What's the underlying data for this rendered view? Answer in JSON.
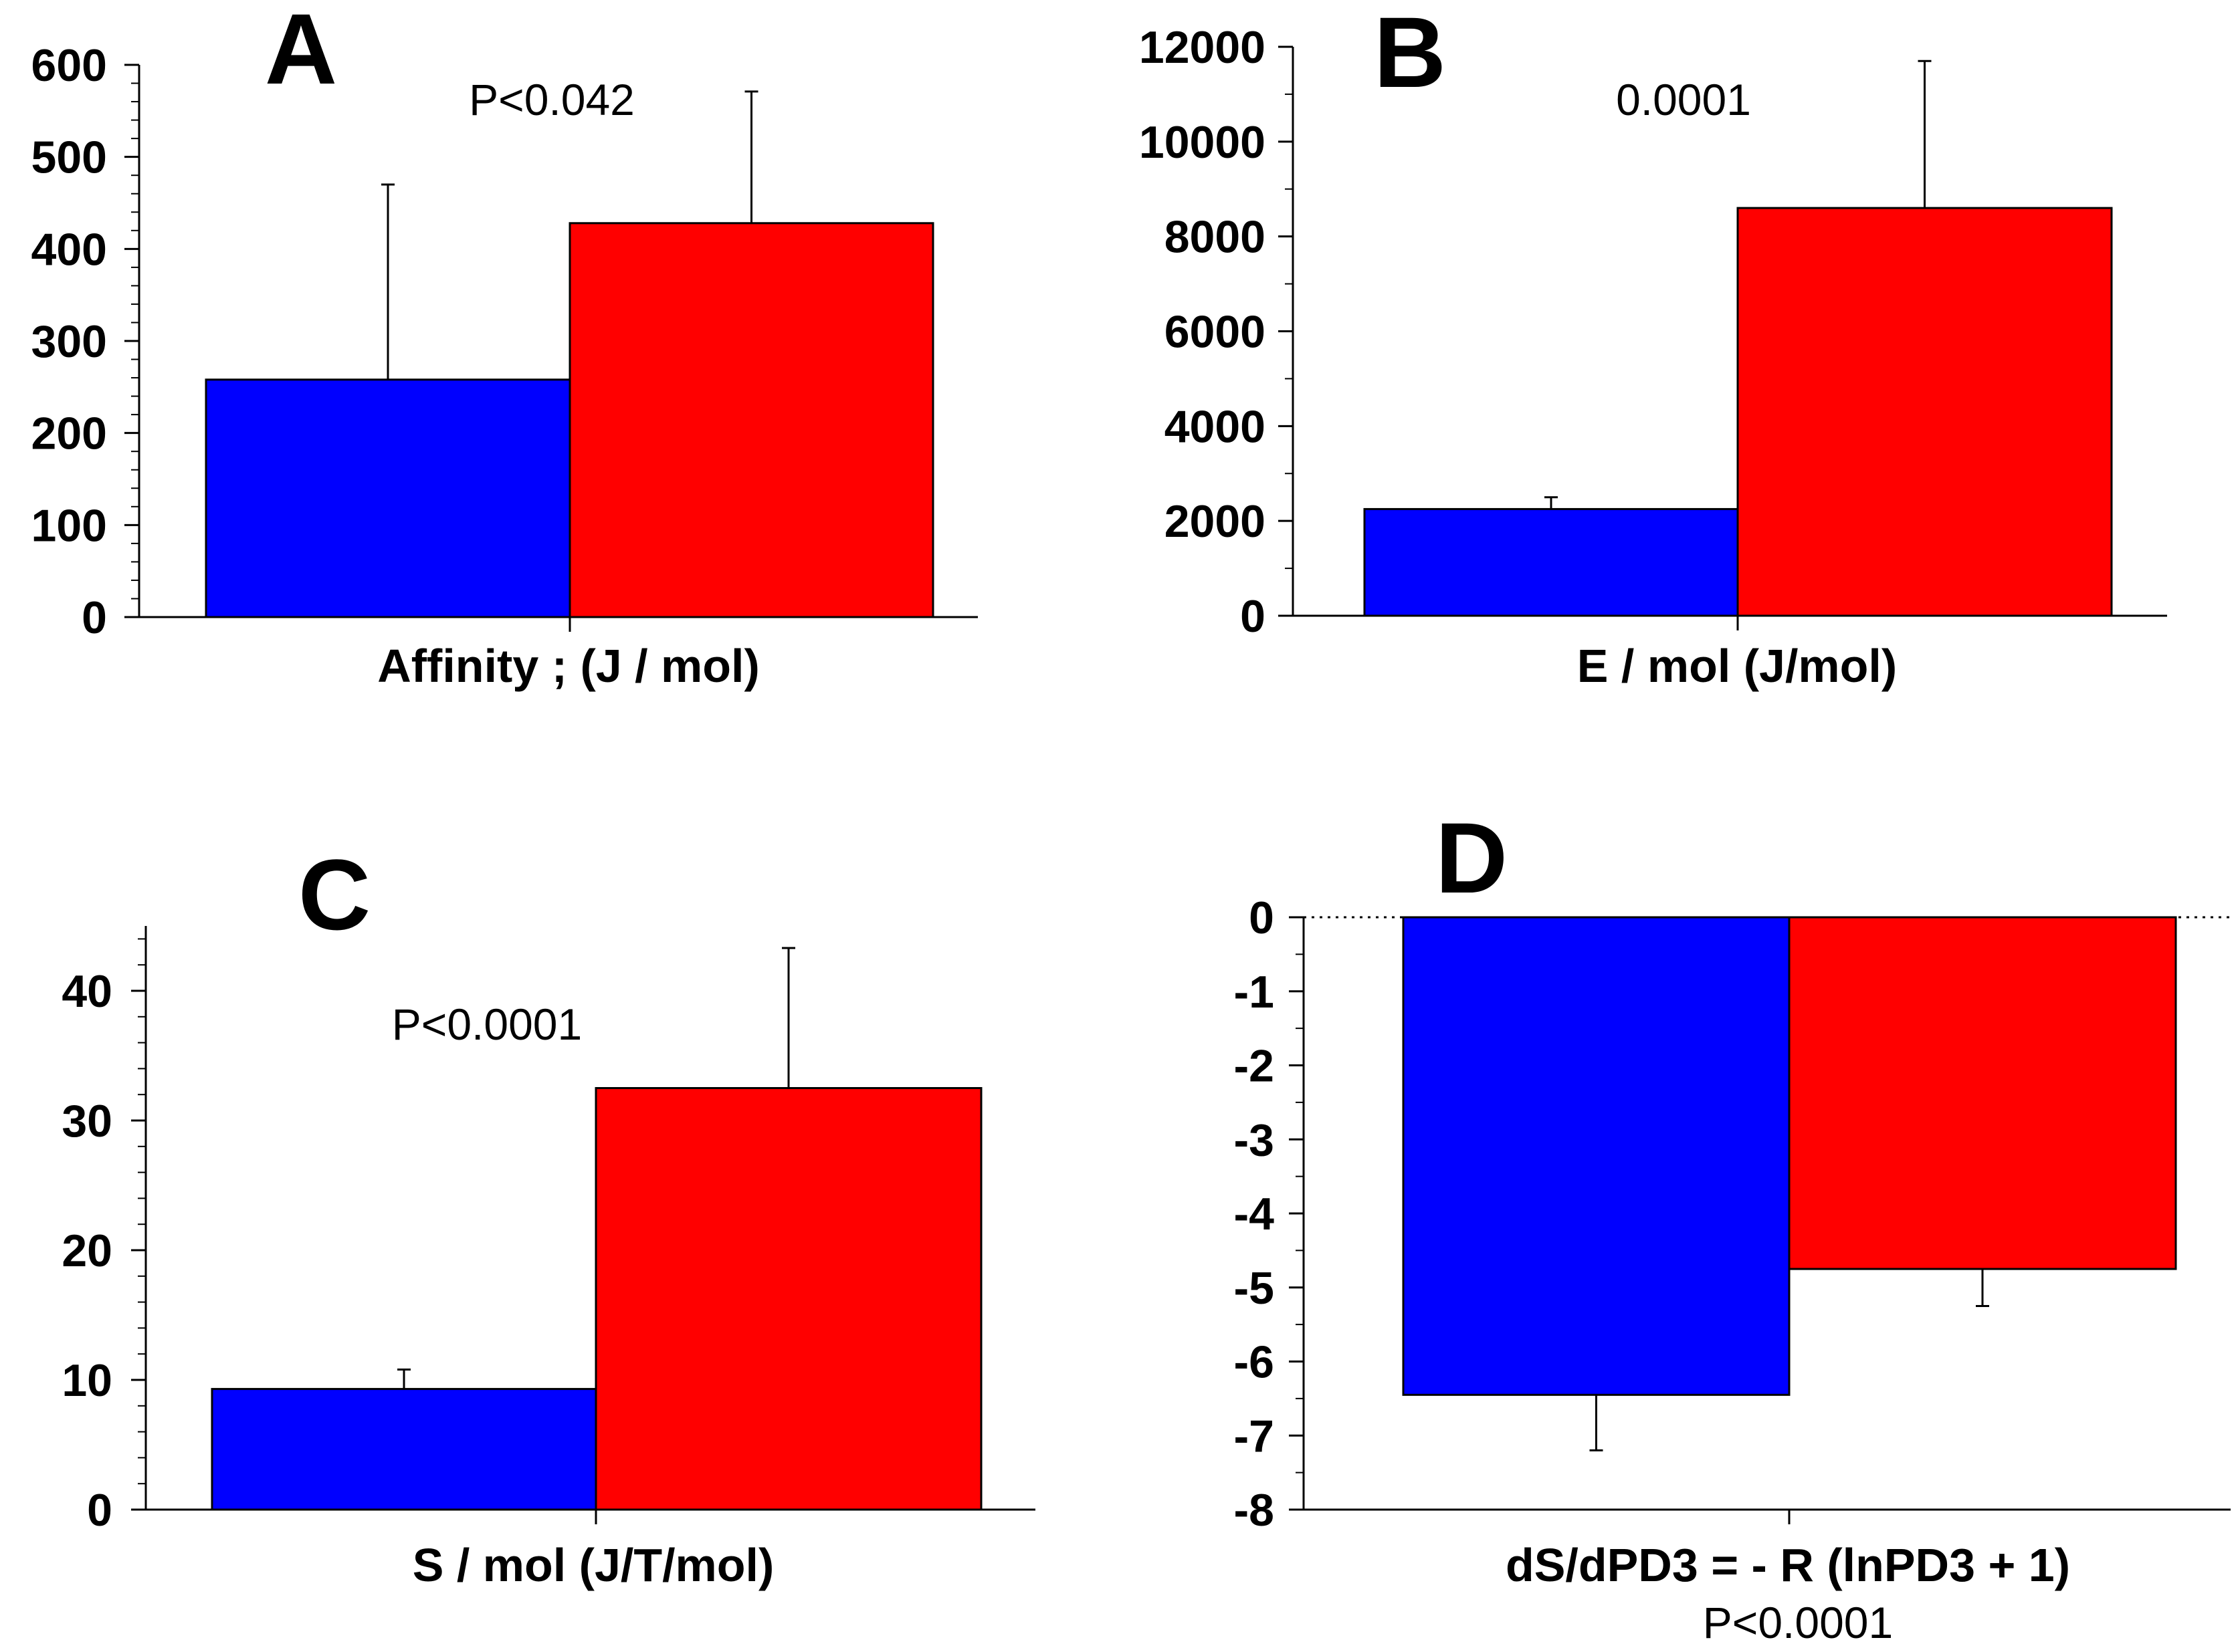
{
  "chart_data": [
    {
      "type": "bar",
      "panel_label": "A",
      "annotation": "P<0.042",
      "xlabel": "Affinity ; (J / mol)",
      "ylabel": "",
      "ylim": [
        0,
        600
      ],
      "yticks": [
        "0",
        "100",
        "200",
        "300",
        "400",
        "500",
        "600"
      ],
      "minor_ticks_per_interval": 4,
      "bars": [
        {
          "value": 258,
          "error": 212,
          "color": "#0000ff"
        },
        {
          "value": 428,
          "error": 143,
          "color": "#ff0000"
        }
      ]
    },
    {
      "type": "bar",
      "panel_label": "B",
      "annotation": "0.0001",
      "xlabel": "E / mol (J/mol)",
      "ylabel": "",
      "ylim": [
        0,
        12000
      ],
      "yticks": [
        "0",
        "2000",
        "4000",
        "6000",
        "8000",
        "10000",
        "12000"
      ],
      "minor_ticks_per_interval": 1,
      "bars": [
        {
          "value": 2250,
          "error": 250,
          "color": "#0000ff"
        },
        {
          "value": 8600,
          "error": 3100,
          "color": "#ff0000"
        }
      ]
    },
    {
      "type": "bar",
      "panel_label": "C",
      "annotation": "P<0.0001",
      "xlabel": "S  / mol (J/T/mol)",
      "ylabel": "",
      "ylim": [
        0,
        45
      ],
      "yticks": [
        "0",
        "10",
        "20",
        "30",
        "40"
      ],
      "minor_ticks_per_interval": 4,
      "bars": [
        {
          "value": 9.3,
          "error": 1.5,
          "color": "#0000ff"
        },
        {
          "value": 32.5,
          "error": 10.8,
          "color": "#ff0000"
        }
      ]
    },
    {
      "type": "bar",
      "panel_label": "D",
      "annotation": "P<0.0001",
      "xlabel": "dS/dPD3 = -  R (lnPD3 + 1)",
      "ylabel": "",
      "ylim": [
        -8,
        0
      ],
      "yticks": [
        "0",
        "-1",
        "-2",
        "-3",
        "-4",
        "-5",
        "-6",
        "-7",
        "-8"
      ],
      "minor_ticks_per_interval": 1,
      "zero_line": "dotted",
      "bars": [
        {
          "value": -6.45,
          "error": 0.75,
          "color": "#0000ff"
        },
        {
          "value": -4.75,
          "error": 0.5,
          "color": "#ff0000"
        }
      ]
    }
  ]
}
